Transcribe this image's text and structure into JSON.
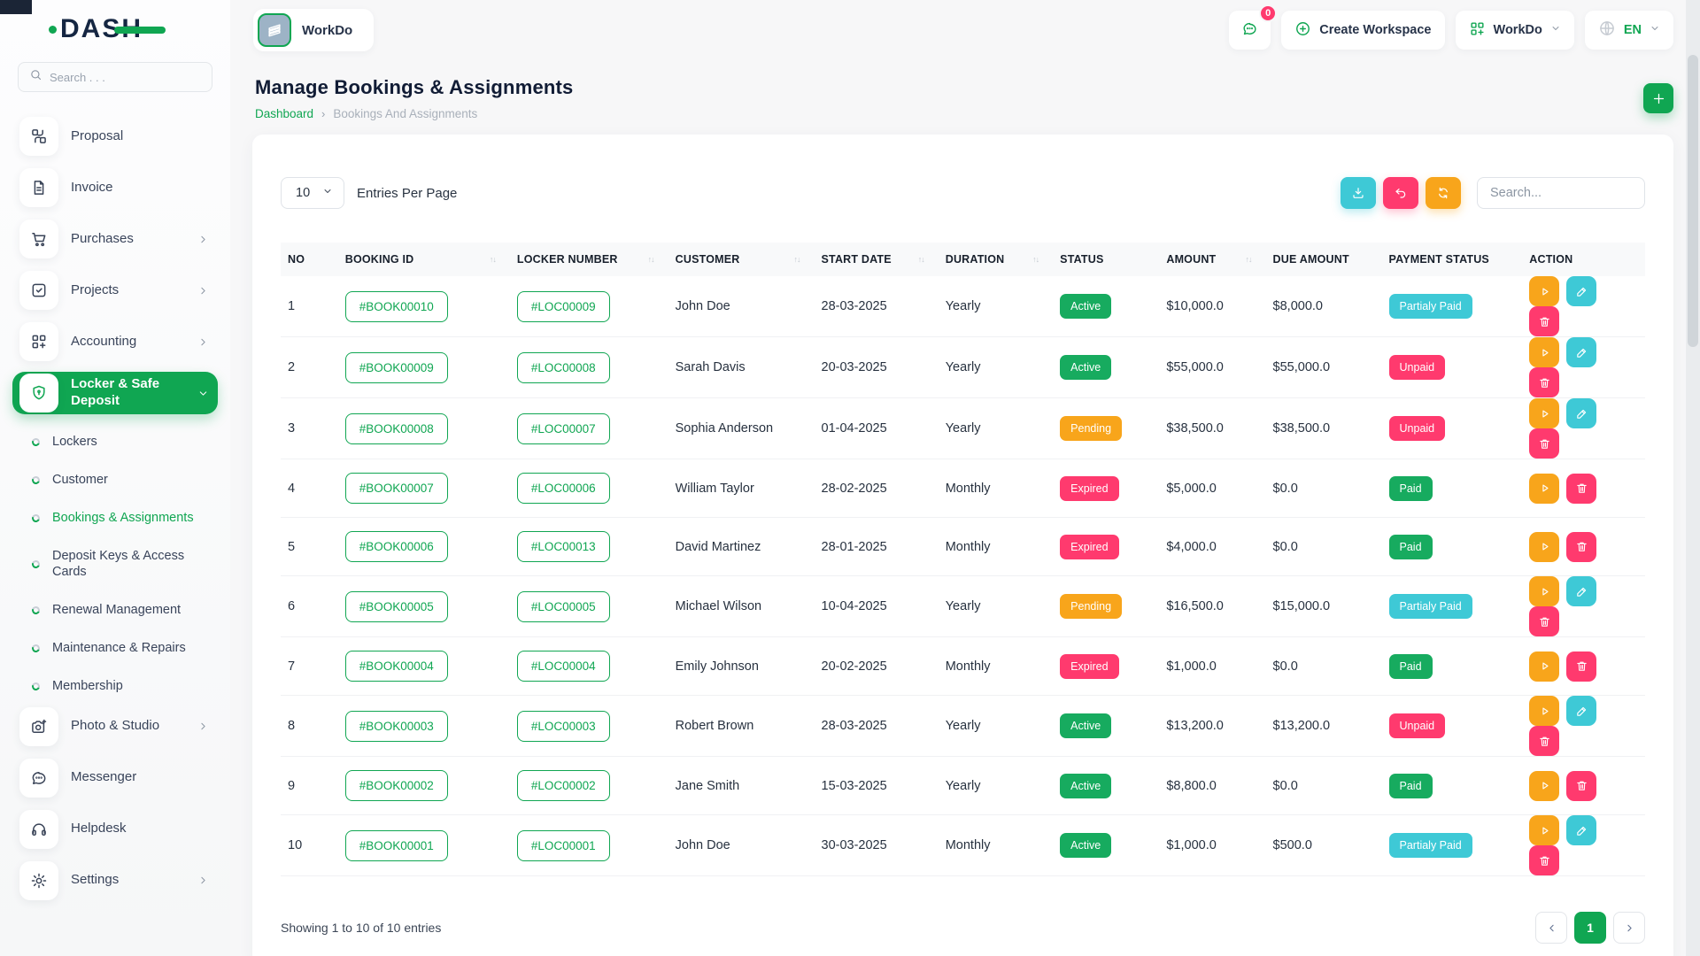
{
  "logo": {
    "text": "DASH"
  },
  "sidebar": {
    "search_placeholder": "Search . . .",
    "items": [
      {
        "id": "proposal",
        "label": "Proposal",
        "icon": "proposal-icon",
        "chevron": null,
        "active": false
      },
      {
        "id": "invoice",
        "label": "Invoice",
        "icon": "invoice-icon",
        "chevron": null,
        "active": false
      },
      {
        "id": "purchases",
        "label": "Purchases",
        "icon": "purchases-icon",
        "chevron": "right",
        "active": false
      },
      {
        "id": "projects",
        "label": "Projects",
        "icon": "projects-icon",
        "chevron": "right",
        "active": false
      },
      {
        "id": "accounting",
        "label": "Accounting",
        "icon": "accounting-icon",
        "chevron": "right",
        "active": false
      },
      {
        "id": "locker-safe-deposit",
        "label": "Locker & Safe Deposit",
        "icon": "shield-icon",
        "chevron": "down",
        "active": true
      }
    ],
    "subitems": [
      {
        "id": "lockers",
        "label": "Lockers",
        "active": false
      },
      {
        "id": "customer",
        "label": "Customer",
        "active": false
      },
      {
        "id": "bookings-assignments",
        "label": "Bookings & Assignments",
        "active": true
      },
      {
        "id": "deposit-keys-access-cards",
        "label": "Deposit Keys & Access Cards",
        "active": false
      },
      {
        "id": "renewal-management",
        "label": "Renewal Management",
        "active": false
      },
      {
        "id": "maintenance-repairs",
        "label": "Maintenance & Repairs",
        "active": false
      },
      {
        "id": "membership",
        "label": "Membership",
        "active": false
      }
    ],
    "items_bottom": [
      {
        "id": "photo-studio",
        "label": "Photo & Studio",
        "icon": "camera-icon",
        "chevron": "right",
        "active": false
      },
      {
        "id": "messenger",
        "label": "Messenger",
        "icon": "messenger-icon",
        "chevron": null,
        "active": false
      },
      {
        "id": "helpdesk",
        "label": "Helpdesk",
        "icon": "helpdesk-icon",
        "chevron": null,
        "active": false
      },
      {
        "id": "settings",
        "label": "Settings",
        "icon": "settings-icon",
        "chevron": "right",
        "active": false
      }
    ]
  },
  "topbar": {
    "workspace_name": "WorkDo",
    "chat_badge": "0",
    "create_workspace_label": "Create Workspace",
    "workspace_menu_label": "WorkDo",
    "language_label": "EN"
  },
  "page": {
    "title": "Manage Bookings & Assignments",
    "breadcrumb_home": "Dashboard",
    "breadcrumb_separator": "›",
    "breadcrumb_current": "Bookings And Assignments"
  },
  "controls": {
    "entries_per_page_value": "10",
    "entries_per_page_label": "Entries Per Page",
    "search_placeholder": "Search...",
    "tool_buttons": [
      {
        "name": "export",
        "icon": "download-icon",
        "color": "teal"
      },
      {
        "name": "reset",
        "icon": "undo-icon",
        "color": "pink"
      },
      {
        "name": "refresh",
        "icon": "refresh-icon",
        "color": "orange"
      }
    ]
  },
  "table": {
    "headers": [
      {
        "label": "NO",
        "sortable": false
      },
      {
        "label": "BOOKING ID",
        "sortable": true
      },
      {
        "label": "LOCKER NUMBER",
        "sortable": true
      },
      {
        "label": "CUSTOMER",
        "sortable": true
      },
      {
        "label": "START DATE",
        "sortable": true
      },
      {
        "label": "DURATION",
        "sortable": true
      },
      {
        "label": "STATUS",
        "sortable": false
      },
      {
        "label": "AMOUNT",
        "sortable": true
      },
      {
        "label": "DUE AMOUNT",
        "sortable": false
      },
      {
        "label": "PAYMENT STATUS",
        "sortable": false
      },
      {
        "label": "ACTION",
        "sortable": false
      }
    ],
    "rows": [
      {
        "no": "1",
        "booking_id": "#BOOK00010",
        "locker_number": "#LOC00009",
        "customer": "John Doe",
        "start_date": "28-03-2025",
        "duration": "Yearly",
        "status": "Active",
        "status_color": "green",
        "amount": "$10,000.0",
        "due_amount": "$8,000.0",
        "payment_status": "Partialy Paid",
        "payment_color": "teal",
        "actions": [
          "view",
          "edit",
          "delete"
        ]
      },
      {
        "no": "2",
        "booking_id": "#BOOK00009",
        "locker_number": "#LOC00008",
        "customer": "Sarah Davis",
        "start_date": "20-03-2025",
        "duration": "Yearly",
        "status": "Active",
        "status_color": "green",
        "amount": "$55,000.0",
        "due_amount": "$55,000.0",
        "payment_status": "Unpaid",
        "payment_color": "pink",
        "actions": [
          "view",
          "edit",
          "delete"
        ]
      },
      {
        "no": "3",
        "booking_id": "#BOOK00008",
        "locker_number": "#LOC00007",
        "customer": "Sophia Anderson",
        "start_date": "01-04-2025",
        "duration": "Yearly",
        "status": "Pending",
        "status_color": "orange",
        "amount": "$38,500.0",
        "due_amount": "$38,500.0",
        "payment_status": "Unpaid",
        "payment_color": "pink",
        "actions": [
          "view",
          "edit",
          "delete"
        ]
      },
      {
        "no": "4",
        "booking_id": "#BOOK00007",
        "locker_number": "#LOC00006",
        "customer": "William Taylor",
        "start_date": "28-02-2025",
        "duration": "Monthly",
        "status": "Expired",
        "status_color": "pink",
        "amount": "$5,000.0",
        "due_amount": "$0.0",
        "payment_status": "Paid",
        "payment_color": "green",
        "actions": [
          "view",
          "delete"
        ]
      },
      {
        "no": "5",
        "booking_id": "#BOOK00006",
        "locker_number": "#LOC00013",
        "customer": "David Martinez",
        "start_date": "28-01-2025",
        "duration": "Monthly",
        "status": "Expired",
        "status_color": "pink",
        "amount": "$4,000.0",
        "due_amount": "$0.0",
        "payment_status": "Paid",
        "payment_color": "green",
        "actions": [
          "view",
          "delete"
        ]
      },
      {
        "no": "6",
        "booking_id": "#BOOK00005",
        "locker_number": "#LOC00005",
        "customer": "Michael Wilson",
        "start_date": "10-04-2025",
        "duration": "Yearly",
        "status": "Pending",
        "status_color": "orange",
        "amount": "$16,500.0",
        "due_amount": "$15,000.0",
        "payment_status": "Partialy Paid",
        "payment_color": "teal",
        "actions": [
          "view",
          "edit",
          "delete"
        ]
      },
      {
        "no": "7",
        "booking_id": "#BOOK00004",
        "locker_number": "#LOC00004",
        "customer": "Emily Johnson",
        "start_date": "20-02-2025",
        "duration": "Monthly",
        "status": "Expired",
        "status_color": "pink",
        "amount": "$1,000.0",
        "due_amount": "$0.0",
        "payment_status": "Paid",
        "payment_color": "green",
        "actions": [
          "view",
          "delete"
        ]
      },
      {
        "no": "8",
        "booking_id": "#BOOK00003",
        "locker_number": "#LOC00003",
        "customer": "Robert Brown",
        "start_date": "28-03-2025",
        "duration": "Yearly",
        "status": "Active",
        "status_color": "green",
        "amount": "$13,200.0",
        "due_amount": "$13,200.0",
        "payment_status": "Unpaid",
        "payment_color": "pink",
        "actions": [
          "view",
          "edit",
          "delete"
        ]
      },
      {
        "no": "9",
        "booking_id": "#BOOK00002",
        "locker_number": "#LOC00002",
        "customer": "Jane Smith",
        "start_date": "15-03-2025",
        "duration": "Yearly",
        "status": "Active",
        "status_color": "green",
        "amount": "$8,800.0",
        "due_amount": "$0.0",
        "payment_status": "Paid",
        "payment_color": "green",
        "actions": [
          "view",
          "delete"
        ]
      },
      {
        "no": "10",
        "booking_id": "#BOOK00001",
        "locker_number": "#LOC00001",
        "customer": "John Doe",
        "start_date": "30-03-2025",
        "duration": "Monthly",
        "status": "Active",
        "status_color": "green",
        "amount": "$1,000.0",
        "due_amount": "$500.0",
        "payment_status": "Partialy Paid",
        "payment_color": "teal",
        "actions": [
          "view",
          "edit",
          "delete"
        ]
      }
    ]
  },
  "footer": {
    "showing_text": "Showing 1 to 10 of 10 entries",
    "current_page": "1"
  },
  "colors": {
    "primary_green": "#10A652",
    "teal": "#3EC9D6",
    "pink": "#FF3A6E",
    "orange": "#F8A51B"
  }
}
